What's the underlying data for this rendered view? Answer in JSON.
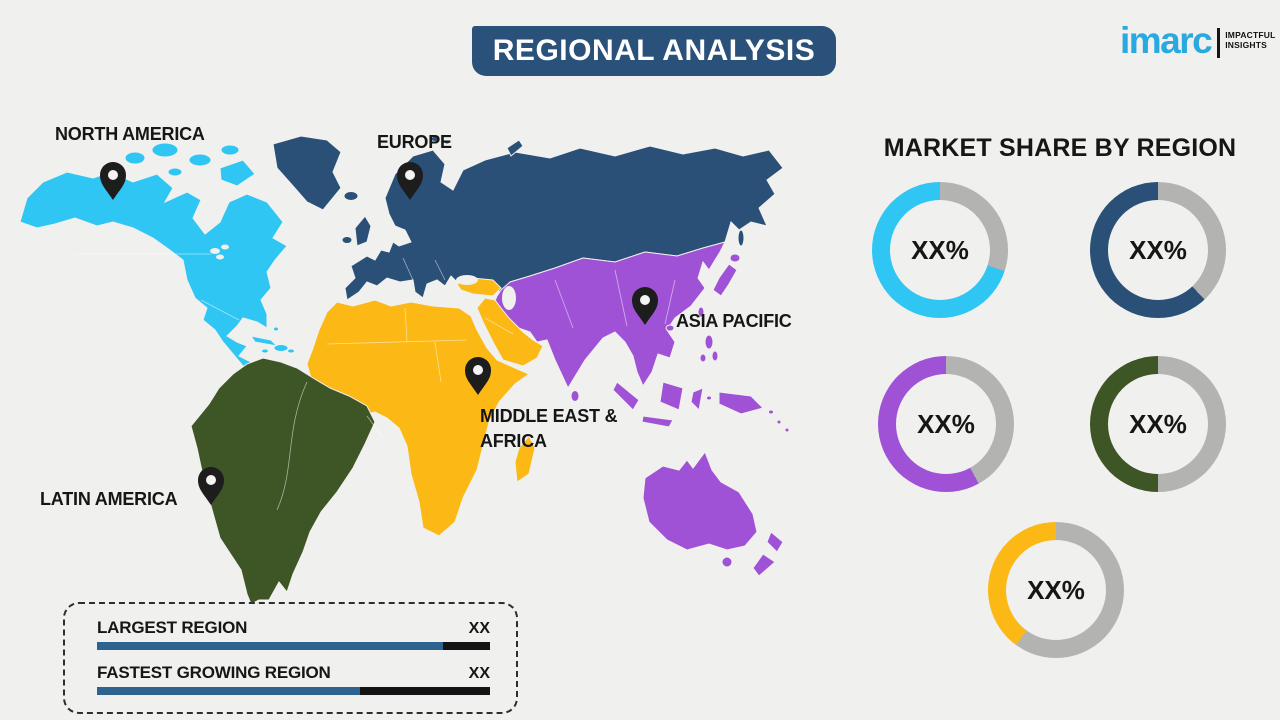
{
  "page": {
    "background": "#f0f0ee"
  },
  "header": {
    "title": "REGIONAL ANALYSIS",
    "badge_color": "#2a5179",
    "text_color": "#ffffff"
  },
  "logo": {
    "brand": "imarc",
    "tagline_line1": "IMPACTFUL",
    "tagline_line2": "INSIGHTS",
    "brand_color": "#2aa9e0"
  },
  "map": {
    "regions": [
      {
        "id": "north-america",
        "label": "NORTH AMERICA",
        "color": "#2fc6f3"
      },
      {
        "id": "europe",
        "label": "EUROPE",
        "color": "#2a5078"
      },
      {
        "id": "asia-pacific",
        "label": "ASIA PACIFIC",
        "color": "#a052d6"
      },
      {
        "id": "middle-east-africa",
        "label": "MIDDLE EAST & AFRICA",
        "label_line1": "MIDDLE EAST &",
        "label_line2": "AFRICA",
        "color": "#fcb814"
      },
      {
        "id": "latin-america",
        "label": "LATIN AMERICA",
        "color": "#3e5626"
      }
    ],
    "pin_color": "#1d1d1d"
  },
  "market_share": {
    "heading": "MARKET SHARE BY REGION",
    "track_color": "#b3b3b2",
    "donuts": [
      {
        "region": "North America",
        "value_label": "XX%",
        "color": "#2fc6f3",
        "filled_percent": 70
      },
      {
        "region": "Europe",
        "value_label": "XX%",
        "color": "#2a5078",
        "filled_percent": 62
      },
      {
        "region": "Asia Pacific",
        "value_label": "XX%",
        "color": "#a052d6",
        "filled_percent": 58
      },
      {
        "region": "Latin America",
        "value_label": "XX%",
        "color": "#3e5626",
        "filled_percent": 50
      },
      {
        "region": "Middle East & Africa",
        "value_label": "XX%",
        "color": "#fcb814",
        "filled_percent": 40
      }
    ]
  },
  "legend": {
    "bar_fill_color": "#2e628f",
    "bar_track_color": "#141414",
    "rows": [
      {
        "label": "LARGEST REGION",
        "value": "XX",
        "bar_fill_percent": 88
      },
      {
        "label": "FASTEST GROWING REGION",
        "value": "XX",
        "bar_fill_percent": 67
      }
    ]
  }
}
